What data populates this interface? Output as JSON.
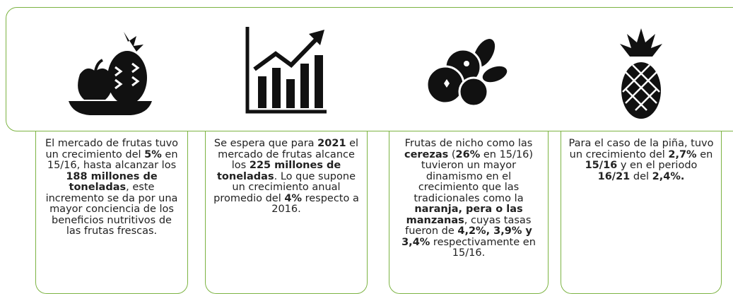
{
  "cards": [
    {
      "segments": [
        {
          "text": "El mercado de frutas tuvo un crecimiento del ",
          "bold": false
        },
        {
          "text": "5%",
          "bold": true
        },
        {
          "text": " en 15/16, hasta alcanzar los ",
          "bold": false
        },
        {
          "text": "188 millones de toneladas",
          "bold": true
        },
        {
          "text": ", este incremento se da por una mayor conciencia de los beneficios nutritivos de las frutas frescas.",
          "bold": false
        }
      ]
    },
    {
      "segments": [
        {
          "text": "Se espera que para ",
          "bold": false
        },
        {
          "text": "2021",
          "bold": true
        },
        {
          "text": " el mercado de frutas alcance los ",
          "bold": false
        },
        {
          "text": "225 millones de toneladas",
          "bold": true
        },
        {
          "text": ". Lo que supone un crecimiento anual promedio del ",
          "bold": false
        },
        {
          "text": "4%",
          "bold": true
        },
        {
          "text": " respecto a 2016.",
          "bold": false
        }
      ]
    },
    {
      "segments": [
        {
          "text": "Frutas de nicho como las ",
          "bold": false
        },
        {
          "text": "cerezas",
          "bold": true
        },
        {
          "text": " (",
          "bold": false
        },
        {
          "text": "26%",
          "bold": true
        },
        {
          "text": " en 15/16) tuvieron un mayor dinamismo en el  crecimiento que las tradicionales como la ",
          "bold": false
        },
        {
          "text": "naranja, pera o las manzanas",
          "bold": true
        },
        {
          "text": ", cuyas tasas fueron de ",
          "bold": false
        },
        {
          "text": "4,2%, 3,9% y 3,4%",
          "bold": true
        },
        {
          "text": " respectivamente en 15/16.",
          "bold": false
        }
      ]
    },
    {
      "segments": [
        {
          "text": "Para el caso de la piña,  tuvo un crecimiento del ",
          "bold": false
        },
        {
          "text": "2,7%",
          "bold": true
        },
        {
          "text": " en ",
          "bold": false
        },
        {
          "text": "15/16",
          "bold": true
        },
        {
          "text": " y en el periodo ",
          "bold": false
        },
        {
          "text": "16/21",
          "bold": true
        },
        {
          "text": " del ",
          "bold": false
        },
        {
          "text": "2,4%.",
          "bold": true
        }
      ]
    }
  ]
}
